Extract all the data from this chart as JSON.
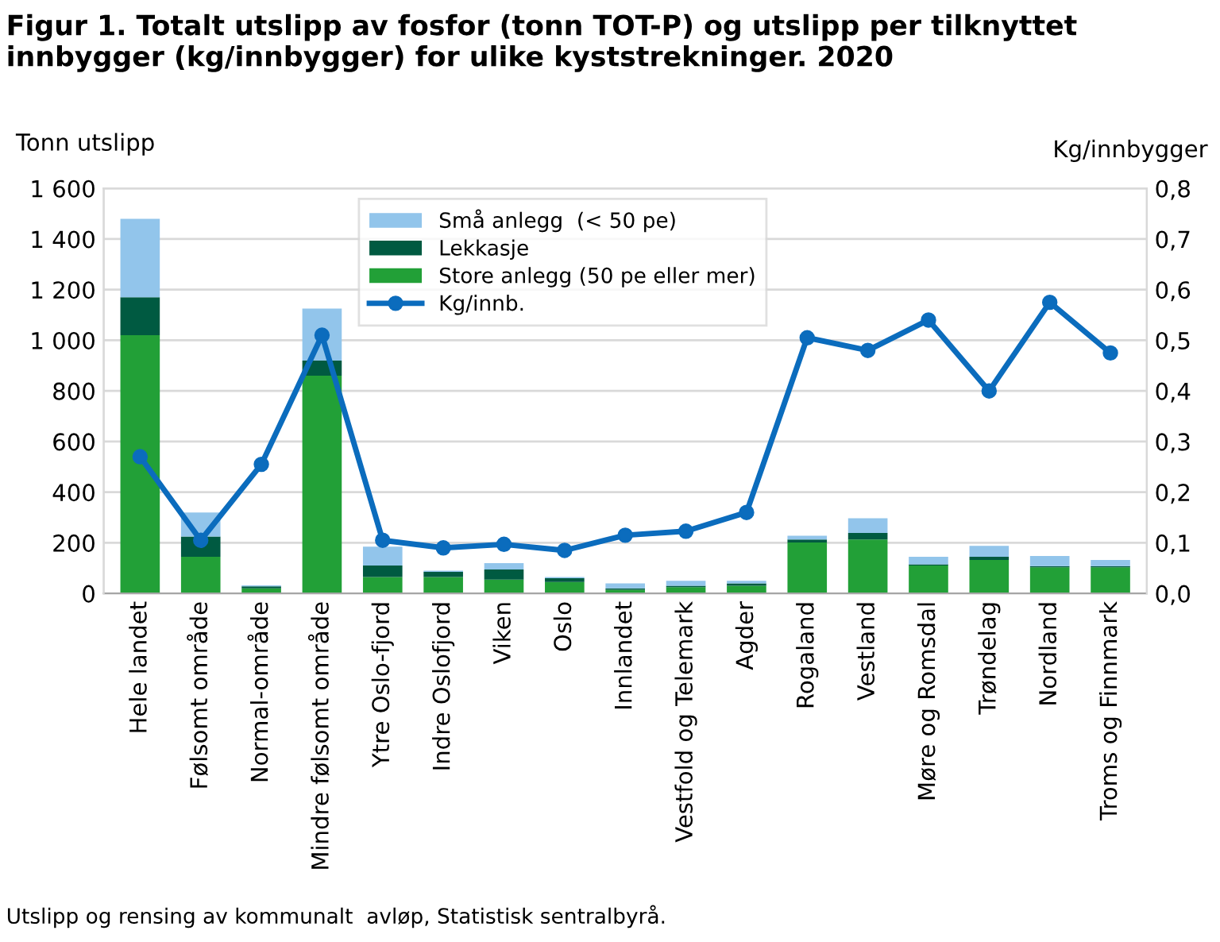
{
  "chart_data": {
    "type": "bar",
    "stacked": true,
    "title": "Figur 1. Totalt utslipp av fosfor (tonn TOT-P) og utslipp per tilknyttet innbygger (kg/innbygger) for ulike kyststrekninger. 2020",
    "ylabel": "Tonn utslipp",
    "y2label": "Kg/innbygger",
    "categories": [
      "Hele landet",
      "Følsomt område",
      "Normal-område",
      "Mindre følsomt område",
      "Ytre Oslo-fjord",
      "Indre Oslofjord",
      "Viken",
      "Oslo",
      "Innlandet",
      "Vestfold og Telemark",
      "Agder",
      "Rogaland",
      "Vestland",
      "Møre og Romsdal",
      "Trøndelag",
      "Nordland",
      "Troms og Finnmark"
    ],
    "series": [
      {
        "name": "Store anlegg (50 pe eller mer)",
        "color": "#22a037",
        "values": [
          1020,
          145,
          20,
          860,
          65,
          65,
          55,
          45,
          15,
          25,
          30,
          201,
          213,
          110,
          132,
          103,
          103
        ]
      },
      {
        "name": "Lekkasje",
        "color": "#005a41",
        "values": [
          150,
          80,
          8,
          60,
          45,
          20,
          40,
          15,
          5,
          5,
          10,
          12,
          26,
          5,
          13,
          5,
          5
        ]
      },
      {
        "name": "Små anlegg  (< 50 pe)",
        "color": "#92c5eb",
        "values": [
          310,
          95,
          4,
          205,
          75,
          5,
          25,
          5,
          20,
          20,
          10,
          15,
          58,
          30,
          43,
          40,
          24
        ]
      },
      {
        "name": "Kg/innb.",
        "type": "line",
        "axis": "y2",
        "color": "#0b6cbd",
        "marker": "circle",
        "values": [
          0.27,
          0.105,
          0.255,
          0.51,
          0.105,
          0.09,
          0.097,
          0.085,
          0.115,
          0.123,
          0.16,
          0.505,
          0.48,
          0.54,
          0.4,
          0.575,
          0.475
        ]
      }
    ],
    "ylim": [
      0,
      1600
    ],
    "yticks": [
      0,
      200,
      400,
      600,
      800,
      {
        "value": 1000,
        "label": "1 000"
      },
      {
        "value": 1200,
        "label": "1 200"
      },
      {
        "value": 1400,
        "label": "1 400"
      },
      {
        "value": 1600,
        "label": "1 600"
      }
    ],
    "y2lim": [
      0,
      0.8
    ],
    "y2ticks": [
      {
        "value": 0,
        "label": "0,0"
      },
      {
        "value": 0.1,
        "label": "0,1"
      },
      {
        "value": 0.2,
        "label": "0,2"
      },
      {
        "value": 0.3,
        "label": "0,3"
      },
      {
        "value": 0.4,
        "label": "0,4"
      },
      {
        "value": 0.5,
        "label": "0,5"
      },
      {
        "value": 0.6,
        "label": "0,6"
      },
      {
        "value": 0.7,
        "label": "0,7"
      },
      {
        "value": 0.8,
        "label": "0,8"
      }
    ],
    "grid": "y",
    "legend": "top",
    "annotations": [
      "Utslipp og rensing av kommunalt  avløp, Statistisk sentralbyrå."
    ]
  }
}
